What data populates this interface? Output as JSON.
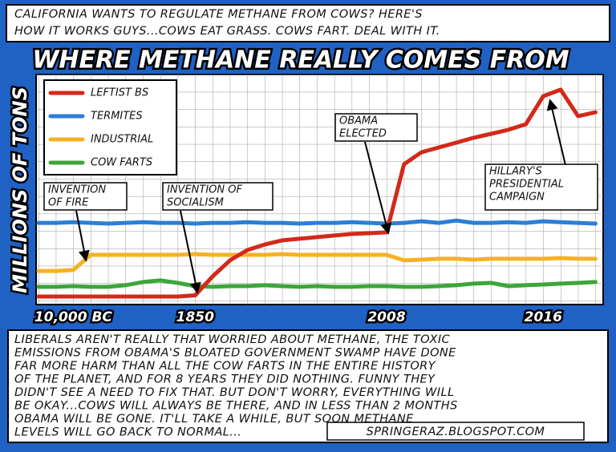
{
  "header": {
    "caption_lines": [
      "CALIFORNIA WANTS TO REGULATE METHANE FROM COWS?  HERE'S",
      "HOW IT WORKS GUYS...COWS EAT GRASS. COWS FART. DEAL WITH IT."
    ]
  },
  "chart_data": {
    "type": "line",
    "title": "WHERE METHANE REALLY COMES FROM",
    "y_label": "MILLIONS OF TONS",
    "categories": [
      null,
      null,
      "10,000 BC",
      null,
      null,
      null,
      null,
      null,
      null,
      "1850",
      null,
      null,
      null,
      null,
      null,
      null,
      null,
      null,
      null,
      null,
      "2008",
      null,
      null,
      null,
      null,
      null,
      null,
      null,
      null,
      "2016",
      null,
      null,
      null
    ],
    "ylim": [
      0,
      100
    ],
    "grid": true,
    "legend": "upper left",
    "series": [
      {
        "name": "LEFTIST BS",
        "color": "#d3291a",
        "values": [
          3.5,
          3.5,
          3.5,
          3.5,
          3.5,
          3.5,
          3.5,
          3.5,
          3.5,
          4,
          12.2,
          19.2,
          23.7,
          26.1,
          27.9,
          28.6,
          29.3,
          30,
          30.7,
          31,
          31.4,
          61,
          66.2,
          68.3,
          70.4,
          72.5,
          74.2,
          76,
          78.4,
          90.6,
          93.4,
          81.9,
          83.6
        ]
      },
      {
        "name": "TERMITES",
        "color": "#2b7fd6",
        "values": [
          35.5,
          35.5,
          35.8,
          35.5,
          35.2,
          35.5,
          35.8,
          35.5,
          35.5,
          35.2,
          35.5,
          35.5,
          35.8,
          35.5,
          35.5,
          35.2,
          35.5,
          35.5,
          35.8,
          35.5,
          35.2,
          35.5,
          36.2,
          35.5,
          36.5,
          35.5,
          35.5,
          35.8,
          35.5,
          36.2,
          35.8,
          35.5,
          35.2
        ]
      },
      {
        "name": "INDUSTRIAL",
        "color": "#f4b223",
        "values": [
          14.6,
          14.6,
          15,
          21.6,
          21.6,
          21.6,
          21.6,
          21.6,
          21.6,
          21.9,
          21.6,
          21.6,
          21.6,
          21.6,
          21.9,
          21.6,
          21.6,
          21.6,
          21.6,
          21.6,
          21.6,
          19.2,
          19.5,
          19.9,
          19.9,
          19.5,
          19.9,
          19.9,
          19.9,
          19.9,
          20.2,
          19.9,
          19.9
        ]
      },
      {
        "name": "COW FARTS",
        "color": "#3ca63a",
        "values": [
          7.7,
          7.7,
          8,
          7.7,
          7.7,
          8.4,
          9.8,
          10.5,
          9.4,
          8,
          7.7,
          8,
          8,
          8.4,
          8,
          7.7,
          8,
          7.7,
          7.7,
          8,
          8,
          7.7,
          7.7,
          8,
          8.4,
          9.1,
          9.4,
          8,
          8.4,
          8.7,
          9.1,
          9.4,
          9.8
        ]
      }
    ],
    "annotations": [
      {
        "lines": [
          "INVENTION",
          "OF FIRE"
        ]
      },
      {
        "lines": [
          "INVENTION OF",
          "SOCIALISM"
        ]
      },
      {
        "lines": [
          "OBAMA",
          "ELECTED"
        ]
      },
      {
        "lines": [
          "HILLARY'S",
          "PRESIDENTIAL",
          "CAMPAIGN"
        ]
      }
    ]
  },
  "footer": {
    "lines": [
      "LIBERALS AREN'T REALLY THAT WORRIED ABOUT METHANE, THE TOXIC",
      "EMISSIONS FROM OBAMA'S BLOATED GOVERNMENT SWAMP HAVE DONE",
      "FAR MORE HARM THAN ALL THE COW FARTS IN THE ENTIRE HISTORY",
      "OF THE PLANET, AND FOR 8 YEARS THEY DID NOTHING.  FUNNY THEY",
      "DIDN'T SEE A NEED TO FIX THAT.  BUT DON'T WORRY, EVERYTHING WILL",
      "BE OKAY...COWS WILL ALWAYS BE THERE, AND IN LESS THAN 2 MONTHS",
      "OBAMA WILL BE GONE.  IT'LL TAKE A WHILE, BUT SOON METHANE",
      "LEVELS WILL GO BACK TO NORMAL..."
    ],
    "signature": "SPRINGERAZ.BLOGSPOT.COM"
  }
}
